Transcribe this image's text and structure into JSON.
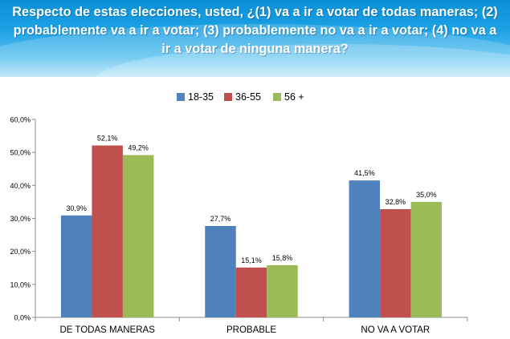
{
  "title": "Respecto de estas elecciones, usted, ¿(1) va a ir a votar de todas maneras; (2) probablemente va a ir a votar; (3) probablemente no va a ir a votar; (4) no va a ir a votar de ninguna manera?",
  "title_lines": [
    "Respecto de estas elecciones, usted, ¿(1) va a ir a votar de todas maneras; (2)",
    "probablemente va a ir a votar; (3) probablemente no va a ir a votar; (4) no va a",
    "ir a votar de ninguna manera?"
  ],
  "chart_data": {
    "type": "bar",
    "categories": [
      "DE TODAS MANERAS",
      "PROBABLE",
      "NO VA A VOTAR"
    ],
    "series": [
      {
        "name": "18-35",
        "color": "#4f81bd",
        "values": [
          30.9,
          27.7,
          41.5
        ],
        "labels": [
          "30,9%",
          "27,7%",
          "41,5%"
        ]
      },
      {
        "name": "36-55",
        "color": "#c0504d",
        "values": [
          52.1,
          15.1,
          32.8
        ],
        "labels": [
          "52,1%",
          "15,1%",
          "32,8%"
        ]
      },
      {
        "name": "56 +",
        "color": "#9bbb59",
        "values": [
          49.2,
          15.8,
          35.0
        ],
        "labels": [
          "49,2%",
          "15,8%",
          "35,0%"
        ]
      }
    ],
    "ylim": [
      0,
      60
    ],
    "yticks": [
      0,
      10,
      20,
      30,
      40,
      50,
      60
    ],
    "ytick_labels": [
      "0,0%",
      "10,0%",
      "20,0%",
      "30,0%",
      "40,0%",
      "50,0%",
      "60,0%"
    ],
    "legend_position": "top-center",
    "grid": false,
    "xlabel": "",
    "ylabel": ""
  }
}
